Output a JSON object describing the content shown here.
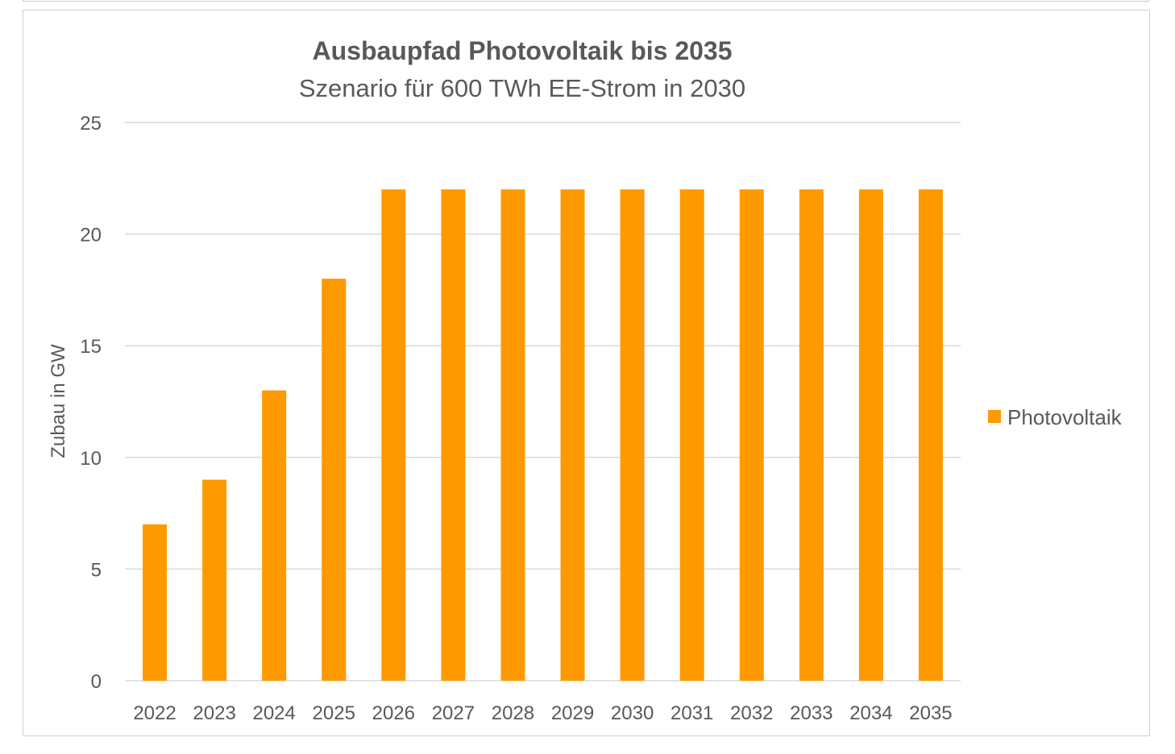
{
  "colors": {
    "bar": "#ff9900",
    "grid": "#d9d9d9",
    "text": "#595959"
  },
  "chart_data": {
    "type": "bar",
    "title": "Ausbaupfad Photovoltaik bis 2035",
    "subtitle": "Szenario für 600 TWh EE-Strom in 2030",
    "xlabel": "",
    "ylabel": "Zubau in GW",
    "ylim": [
      0,
      25
    ],
    "yticks": [
      "0",
      "5",
      "10",
      "15",
      "20",
      "25"
    ],
    "categories": [
      "2022",
      "2023",
      "2024",
      "2025",
      "2026",
      "2027",
      "2028",
      "2029",
      "2030",
      "2031",
      "2032",
      "2033",
      "2034",
      "2035"
    ],
    "series": [
      {
        "name": "Photovoltaik",
        "values": [
          7,
          9,
          13,
          18,
          22,
          22,
          22,
          22,
          22,
          22,
          22,
          22,
          22,
          22
        ]
      }
    ],
    "grid": true,
    "legend": "right"
  }
}
